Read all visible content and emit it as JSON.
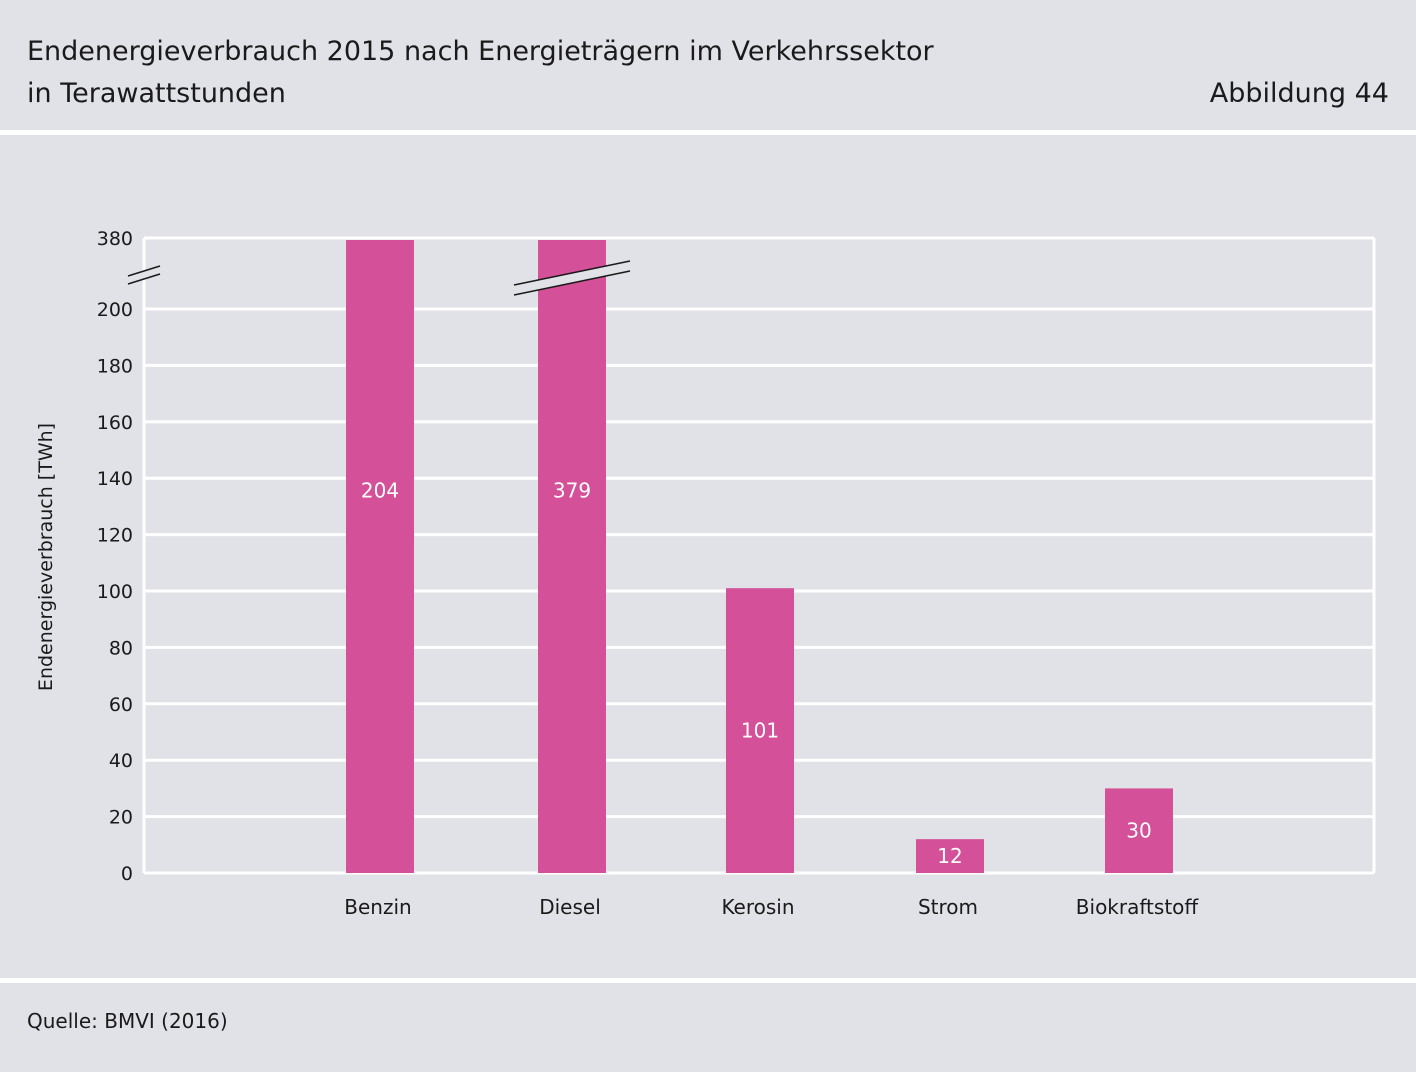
{
  "header": {
    "title_line1": "Endenergieverbrauch 2015 nach Energieträgern im Verkehrssektor",
    "title_line2": "in Terawattstunden",
    "figure_label": "Abbildung 44"
  },
  "footer": {
    "source": "Quelle: BMVI (2016)"
  },
  "chart_data": {
    "type": "bar",
    "title": "Endenergieverbrauch 2015 nach Energieträgern im Verkehrssektor",
    "subtitle": "in Terawattstunden",
    "ylabel": "Endenergieverbrauch [TWh]",
    "xlabel": "",
    "categories": [
      "Benzin",
      "Diesel",
      "Kerosin",
      "Strom",
      "Biokraftstoff"
    ],
    "values": [
      204,
      379,
      101,
      12,
      30
    ],
    "value_labels": [
      "204",
      "379",
      "101",
      "12",
      "30"
    ],
    "yticks": [
      0,
      20,
      40,
      60,
      80,
      100,
      120,
      140,
      160,
      180,
      200,
      380
    ],
    "ylim": [
      0,
      380
    ],
    "axis_break": {
      "from": 200,
      "to": 380
    },
    "grid": true,
    "colors": {
      "bar": "#d45098",
      "bar_label": "#ffffff",
      "plot_background": "#e1e2e7",
      "gridline": "#ffffff"
    }
  }
}
